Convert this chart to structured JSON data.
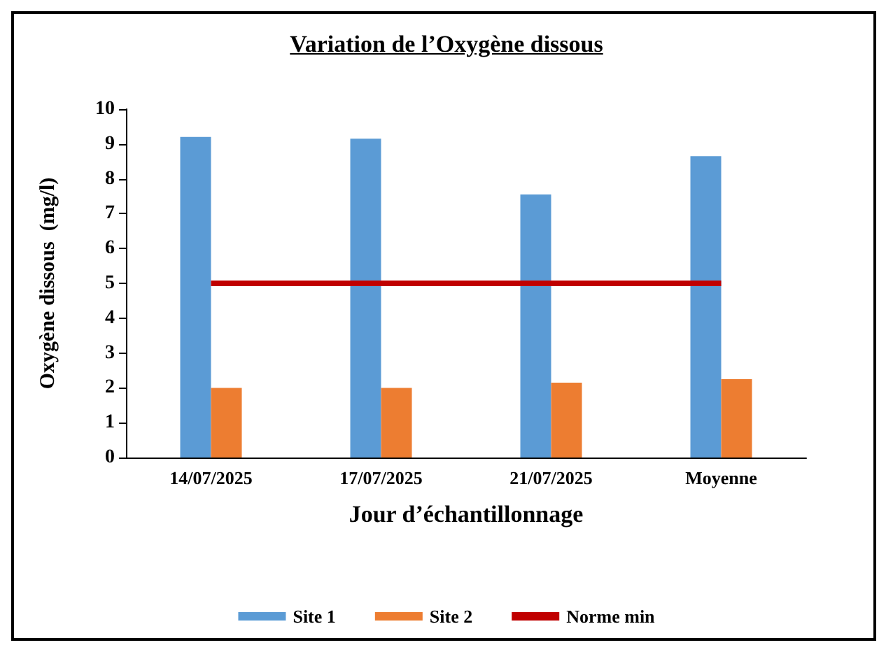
{
  "chart_data": {
    "type": "bar",
    "title": "Variation de l’Oxygène dissous",
    "xlabel": "Jour d’échantillonnage",
    "ylabel": "Oxygène dissous  (mg/l)",
    "categories": [
      "14/07/2025",
      "17/07/2025",
      "21/07/2025",
      "Moyenne"
    ],
    "series": [
      {
        "name": "Site 1",
        "color": "#5b9bd5",
        "values": [
          9.2,
          9.15,
          7.55,
          8.65
        ]
      },
      {
        "name": "Site 2",
        "color": "#ed7d31",
        "values": [
          2.0,
          2.0,
          2.15,
          2.25
        ]
      },
      {
        "name": "Norme min",
        "type": "line",
        "color": "#c00000",
        "values": [
          5,
          5,
          5,
          5
        ],
        "marker": "none"
      }
    ],
    "ylim": [
      0,
      10
    ],
    "yticks": [
      0,
      1,
      2,
      3,
      4,
      5,
      6,
      7,
      8,
      9,
      10
    ],
    "grid": false,
    "legend": "bottom"
  }
}
